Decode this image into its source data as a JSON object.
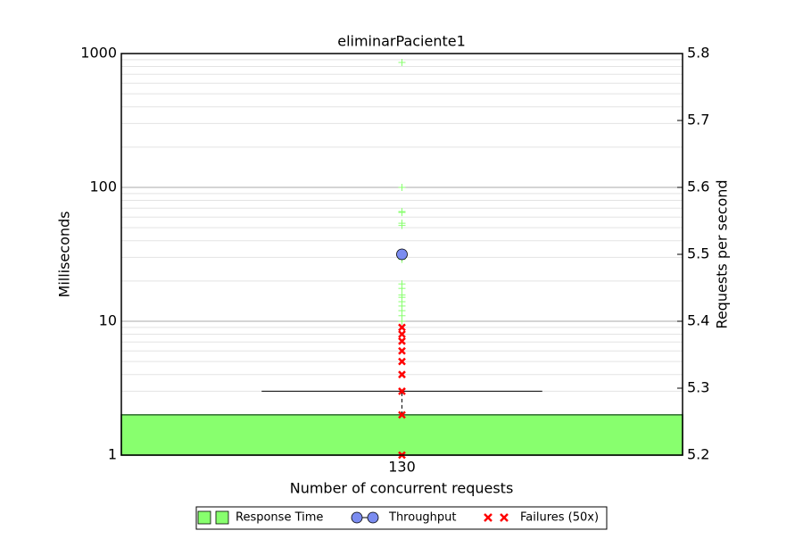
{
  "chart_data": {
    "type": "box",
    "title": "eliminarPaciente1",
    "xlabel": "Number of concurrent requests",
    "ylabel": "Milliseconds",
    "y2label": "Requests per second",
    "categories": [
      "130"
    ],
    "yscale": "log",
    "ylim": [
      1,
      1000
    ],
    "yticks": [
      1,
      10,
      100,
      1000
    ],
    "minor_yticks": [
      2,
      3,
      4,
      5,
      6,
      7,
      8,
      9,
      20,
      30,
      40,
      50,
      60,
      70,
      80,
      90,
      200,
      300,
      400,
      500,
      600,
      700,
      800,
      900
    ],
    "y2lim": [
      5.2,
      5.8
    ],
    "y2ticks": [
      5.2,
      5.3,
      5.4,
      5.5,
      5.6,
      5.7,
      5.8
    ],
    "grid": true,
    "legend": "bottom",
    "series": [
      {
        "name": "Response Time",
        "color": "#88ff6e",
        "box": {
          "q1": 1,
          "q3": 2,
          "whisker_high": 3
        },
        "fliers": [
          858,
          100,
          66,
          65,
          54,
          52,
          29,
          19,
          17.6,
          15.7,
          15.1,
          14,
          13,
          12,
          11,
          10
        ]
      },
      {
        "name": "Throughput",
        "color": "#7b8cf0",
        "axis": "y2",
        "values": [
          5.5
        ]
      },
      {
        "name": "Failures (50x)",
        "color": "#ff0000",
        "points": [
          9,
          8,
          7.1,
          6,
          5,
          4,
          3,
          2,
          1
        ]
      }
    ]
  }
}
